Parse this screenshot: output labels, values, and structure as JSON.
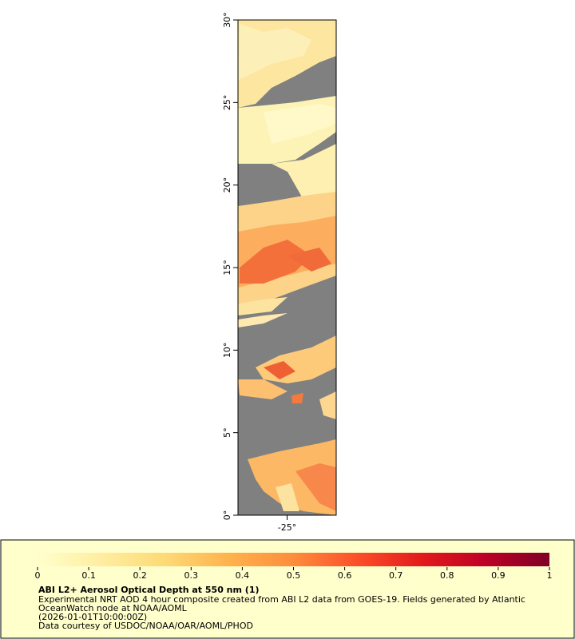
{
  "map": {
    "xlim": [
      -28,
      -22
    ],
    "ylim": [
      0,
      30
    ],
    "xticks": [
      {
        "value": -25,
        "label": "-25°"
      }
    ],
    "yticks": [
      {
        "value": 0,
        "label": "0°"
      },
      {
        "value": 5,
        "label": "5°"
      },
      {
        "value": 10,
        "label": "10°"
      },
      {
        "value": 15,
        "label": "15°"
      },
      {
        "value": 20,
        "label": "20°"
      },
      {
        "value": 25,
        "label": "25°"
      },
      {
        "value": 30,
        "label": "30°"
      }
    ]
  },
  "colorbar": {
    "lim": [
      0,
      1
    ],
    "ticks": [
      0,
      0.1,
      0.2,
      0.3,
      0.4,
      0.5,
      0.6,
      0.7,
      0.8,
      0.9,
      1
    ]
  },
  "caption": {
    "title": "ABI L2+ Aerosol Optical Depth at 550 nm (1)",
    "lines": [
      "Experimental NRT AOD 4 hour composite created from ABI L2 data from GOES-19. Fields generated by Atlantic",
      "OceanWatch node at NOAA/AOML",
      "(2026-01-01T10:00:00Z)",
      "Data courtesy of USDOC/NOAA/OAR/AOML/PHOD"
    ]
  }
}
